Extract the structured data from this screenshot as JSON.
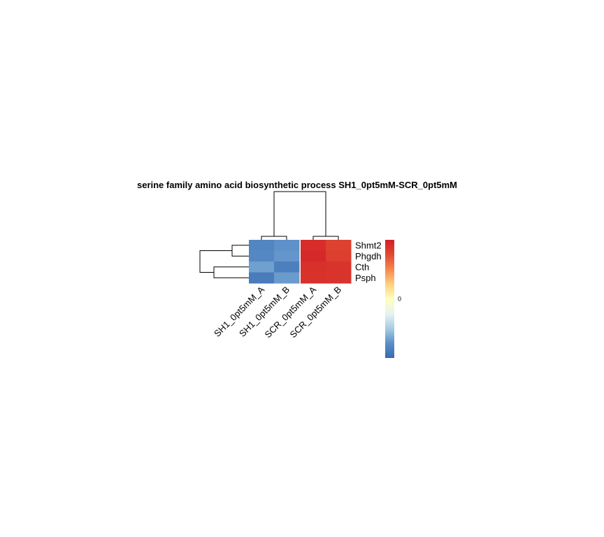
{
  "chart_data": {
    "type": "heatmap",
    "title": "serine family amino acid biosynthetic process SH1_0pt5mM-SCR_0pt5mM",
    "columns": [
      "SH1_0pt5mM_A",
      "SH1_0pt5mM_B",
      "SCR_0pt5mM_A",
      "SCR_0pt5mM_B"
    ],
    "rows": [
      "Shmt2",
      "Phgdh",
      "Cth",
      "Psph"
    ],
    "values": [
      [
        -0.82,
        -0.74,
        0.92,
        0.8
      ],
      [
        -0.8,
        -0.72,
        0.95,
        0.82
      ],
      [
        -0.68,
        -0.86,
        0.9,
        0.88
      ],
      [
        -0.88,
        -0.7,
        0.89,
        0.88
      ]
    ],
    "column_gap_after": 1,
    "color_scale": {
      "min": -1,
      "max": 1,
      "colors": [
        "#3a6ab0",
        "#5b8fc8",
        "#a7cde2",
        "#e6f3f0",
        "#ffffbf",
        "#fdd07e",
        "#f5874f",
        "#e04a32",
        "#d21f26"
      ]
    },
    "legend": {
      "placement": "right",
      "ticks": [
        {
          "value": 0,
          "label": "0"
        }
      ]
    }
  }
}
